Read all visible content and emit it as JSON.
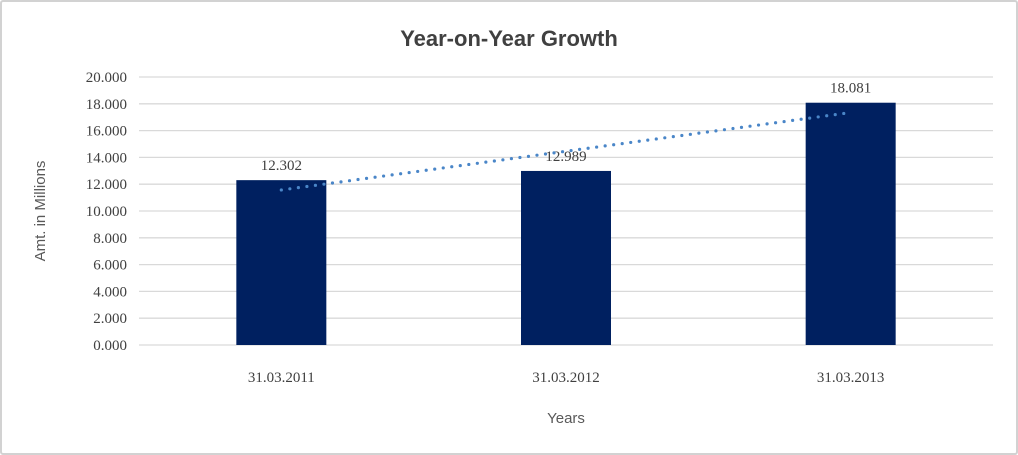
{
  "chart_data": {
    "type": "bar",
    "title": "Year-on-Year Growth",
    "xlabel": "Years",
    "ylabel": "Amt. in Millions",
    "categories": [
      "31.03.2011",
      "31.03.2012",
      "31.03.2013"
    ],
    "values": [
      12.302,
      12.989,
      18.081
    ],
    "data_labels": [
      "12.302",
      "12.989",
      "18.081"
    ],
    "ylim": [
      0,
      20
    ],
    "ytick_step": 2,
    "ytick_labels": [
      "0.000",
      "2.000",
      "4.000",
      "6.000",
      "8.000",
      "10.000",
      "12.000",
      "14.000",
      "16.000",
      "18.000",
      "20.000"
    ],
    "grid": true,
    "legend": "none",
    "colors": {
      "bar": "#002060",
      "gridline": "#d9d9d9",
      "axis_line": "#d9d9d9",
      "tick_text": "#404040",
      "axis_title_text": "#595959",
      "title_text": "#404040",
      "trendline": "#4a86c8",
      "frame_border": "#d2d2d2"
    },
    "trendline": {
      "type": "linear",
      "style": "dotted",
      "color": "#4a86c8",
      "start_value": 11.57,
      "end_value": 17.35
    }
  }
}
